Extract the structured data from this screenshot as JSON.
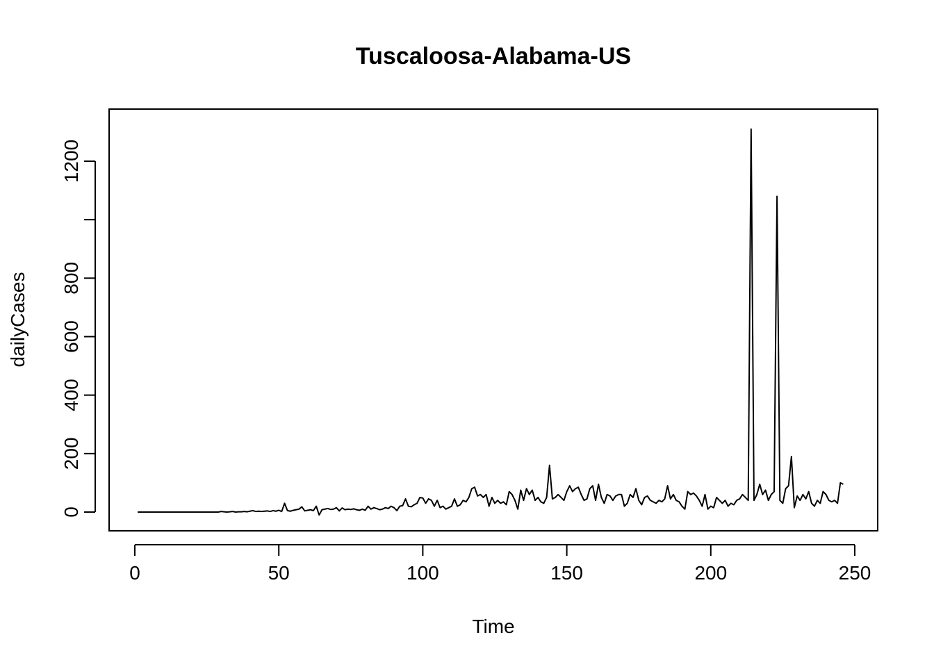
{
  "chart_data": {
    "type": "line",
    "title": "Tuscaloosa-Alabama-US",
    "xlabel": "Time",
    "ylabel": "dailyCases",
    "xlim": [
      1,
      248
    ],
    "ylim": [
      0,
      1310
    ],
    "x_ticks": [
      0,
      50,
      100,
      150,
      200,
      250
    ],
    "y_ticks": [
      0,
      200,
      400,
      600,
      800,
      1000,
      1200
    ],
    "y_tick_labels": [
      "0",
      "200",
      "400",
      "600",
      "800",
      "",
      "1200"
    ],
    "grid": false,
    "legend": "none",
    "line_color": "#000000",
    "series": [
      {
        "values": [
          0,
          0,
          0,
          0,
          0,
          0,
          0,
          0,
          0,
          0,
          0,
          0,
          0,
          0,
          0,
          0,
          0,
          0,
          0,
          0,
          0,
          0,
          0,
          0,
          0,
          0,
          0,
          0,
          0,
          2,
          1,
          0,
          1,
          2,
          0,
          1,
          1,
          2,
          1,
          3,
          5,
          2,
          3,
          2,
          3,
          4,
          2,
          5,
          3,
          6,
          2,
          30,
          5,
          3,
          6,
          8,
          10,
          18,
          4,
          6,
          8,
          5,
          20,
          -10,
          8,
          10,
          12,
          9,
          10,
          15,
          4,
          14,
          8,
          10,
          9,
          11,
          8,
          6,
          10,
          6,
          20,
          10,
          15,
          12,
          8,
          10,
          15,
          12,
          20,
          15,
          5,
          20,
          22,
          45,
          20,
          18,
          25,
          30,
          50,
          48,
          30,
          45,
          40,
          20,
          40,
          15,
          20,
          10,
          15,
          20,
          45,
          20,
          25,
          40,
          35,
          50,
          80,
          85,
          55,
          60,
          50,
          60,
          20,
          50,
          30,
          40,
          30,
          35,
          25,
          70,
          60,
          40,
          10,
          75,
          40,
          80,
          60,
          75,
          40,
          50,
          35,
          30,
          50,
          160,
          45,
          50,
          60,
          50,
          40,
          70,
          90,
          70,
          80,
          85,
          60,
          40,
          45,
          80,
          90,
          40,
          95,
          50,
          30,
          60,
          55,
          40,
          55,
          60,
          60,
          20,
          30,
          60,
          50,
          80,
          40,
          25,
          50,
          55,
          40,
          35,
          30,
          40,
          35,
          45,
          90,
          45,
          60,
          40,
          35,
          20,
          10,
          70,
          60,
          65,
          55,
          40,
          20,
          60,
          10,
          20,
          15,
          50,
          40,
          30,
          40,
          20,
          30,
          25,
          40,
          45,
          60,
          50,
          40,
          1310,
          40,
          60,
          95,
          60,
          75,
          40,
          60,
          70,
          1080,
          40,
          30,
          80,
          90,
          190,
          15,
          55,
          40,
          60,
          45,
          70,
          30,
          20,
          40,
          30,
          70,
          60,
          40,
          35,
          40,
          30,
          100,
          95
        ]
      }
    ]
  }
}
